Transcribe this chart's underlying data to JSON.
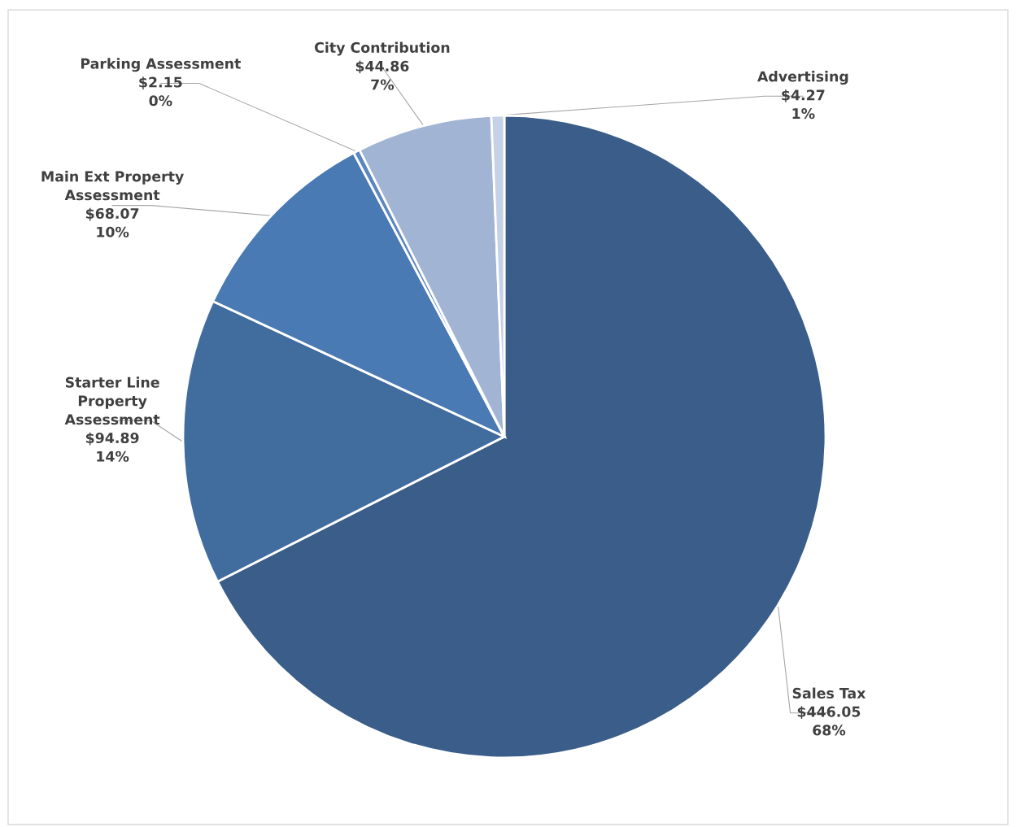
{
  "chart_data": {
    "type": "pie",
    "categories": [
      "Sales Tax",
      "Starter Line Property Assessment",
      "Main Ext Property Assessment",
      "Parking Assessment",
      "City Contribution",
      "Advertising"
    ],
    "values": [
      446.05,
      94.89,
      68.07,
      2.15,
      44.86,
      4.27
    ],
    "value_labels": [
      "$446.05\n68%",
      "$94.89\n14%",
      "$68.07\n10%",
      "$2.15\n0%",
      "$44.86\n7%",
      "$4.27\n1%"
    ],
    "colors": [
      "#3a5d8a",
      "#416c9e",
      "#4a7ab4",
      "#5b86c0",
      "#a2b4d4",
      "#c5d1e6"
    ],
    "legend": false
  }
}
